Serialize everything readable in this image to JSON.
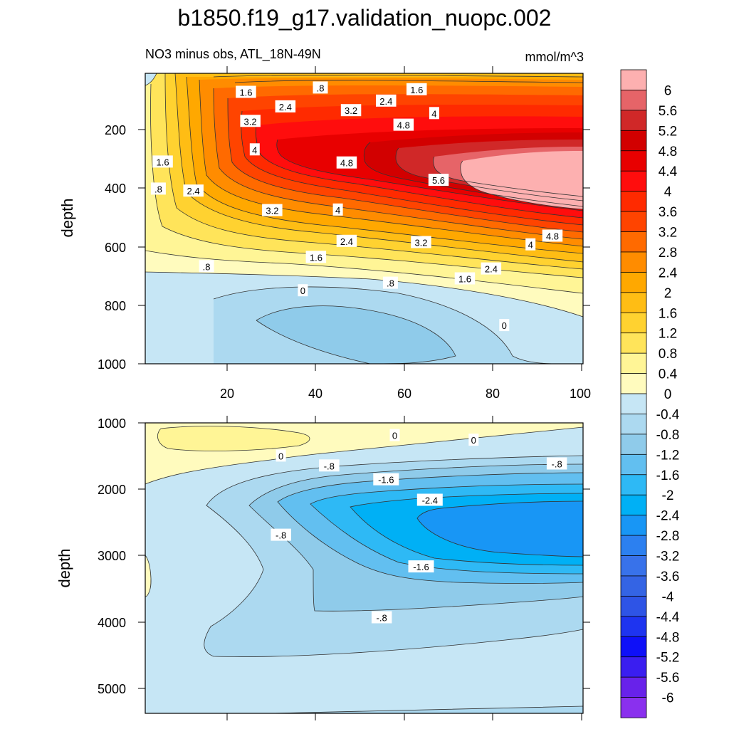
{
  "chart_data": {
    "type": "contour",
    "title": "b1850.f19_g17.validation_nuopc.002",
    "subtitle_left": "NO3 minus obs, ATL_18N-49N",
    "subtitle_right": "mmol/m^3",
    "colorbar": {
      "levels": [
        "6",
        "5.6",
        "5.2",
        "4.8",
        "4.4",
        "4",
        "3.6",
        "3.2",
        "2.8",
        "2.4",
        "2",
        "1.6",
        "1.2",
        "0.8",
        "0.4",
        "0",
        "-0.4",
        "-0.8",
        "-1.2",
        "-1.6",
        "-2",
        "-2.4",
        "-2.8",
        "-3.2",
        "-3.6",
        "-4",
        "-4.4",
        "-4.8",
        "-5.2",
        "-5.6",
        "-6"
      ],
      "colors": [
        "#fdb0b0",
        "#e66468",
        "#d02828",
        "#d20000",
        "#e80000",
        "#ff0d0d",
        "#ff2a00",
        "#ff4400",
        "#ff6a00",
        "#ff8c00",
        "#ffa800",
        "#ffbd14",
        "#ffd230",
        "#ffe45a",
        "#fff596",
        "#fffbbe",
        "#c6e6f5",
        "#acd9f0",
        "#8fcbea",
        "#62bff0",
        "#2eb9f5",
        "#00b0f5",
        "#1896f5",
        "#2c80f0",
        "#3872ea",
        "#3464e4",
        "#2e54e6",
        "#1e34f0",
        "#0e10f8",
        "#3a1ef0",
        "#6822ea",
        "#8a30ee"
      ]
    },
    "panels": [
      {
        "name": "upper",
        "xlim": [
          0,
          100
        ],
        "ylim": [
          0,
          1000
        ],
        "ylabel": "depth",
        "yticks": [
          "200",
          "400",
          "600",
          "800",
          "1000"
        ],
        "xticks": [
          "20",
          "40",
          "60",
          "80",
          "100"
        ],
        "contour_labels": [
          {
            "text": "1.6",
            "x": 23,
            "y": 65
          },
          {
            "text": ".8",
            "x": 40,
            "y": 50
          },
          {
            "text": "1.6",
            "x": 62,
            "y": 56
          },
          {
            "text": "2.4",
            "x": 32,
            "y": 115
          },
          {
            "text": "3.2",
            "x": 47,
            "y": 128
          },
          {
            "text": "2.4",
            "x": 55,
            "y": 95
          },
          {
            "text": "4",
            "x": 66,
            "y": 138
          },
          {
            "text": "3.2",
            "x": 24,
            "y": 165
          },
          {
            "text": "4.8",
            "x": 59,
            "y": 178
          },
          {
            "text": "4",
            "x": 25,
            "y": 263
          },
          {
            "text": "1.6",
            "x": 4,
            "y": 305
          },
          {
            "text": "4.8",
            "x": 46,
            "y": 308
          },
          {
            "text": "5.6",
            "x": 67,
            "y": 368
          },
          {
            "text": ".8",
            "x": 3,
            "y": 398
          },
          {
            "text": "2.4",
            "x": 11,
            "y": 405
          },
          {
            "text": "4",
            "x": 44,
            "y": 470
          },
          {
            "text": "3.2",
            "x": 29,
            "y": 472
          },
          {
            "text": "4.8",
            "x": 93,
            "y": 560
          },
          {
            "text": "2.4",
            "x": 46,
            "y": 578
          },
          {
            "text": "3.2",
            "x": 63,
            "y": 582
          },
          {
            "text": "4",
            "x": 88,
            "y": 590
          },
          {
            "text": "1.6",
            "x": 39,
            "y": 633
          },
          {
            "text": ".8",
            "x": 14,
            "y": 665
          },
          {
            "text": "2.4",
            "x": 79,
            "y": 673
          },
          {
            "text": "1.6",
            "x": 73,
            "y": 707
          },
          {
            "text": ".8",
            "x": 56,
            "y": 722
          },
          {
            "text": "0",
            "x": 36,
            "y": 748
          },
          {
            "text": "0",
            "x": 82,
            "y": 868
          }
        ]
      },
      {
        "name": "lower",
        "xlim": [
          0,
          100
        ],
        "ylim": [
          1000,
          5400
        ],
        "ylabel": "depth",
        "yticks": [
          "1000",
          "2000",
          "3000",
          "4000",
          "5000"
        ],
        "contour_labels": [
          {
            "text": "0",
            "x": 57,
            "y": 1190
          },
          {
            "text": "0",
            "x": 75,
            "y": 1260
          },
          {
            "text": "0",
            "x": 31,
            "y": 1500
          },
          {
            "text": "-.8",
            "x": 42,
            "y": 1650
          },
          {
            "text": "-.8",
            "x": 94,
            "y": 1620
          },
          {
            "text": "-1.6",
            "x": 55,
            "y": 1860
          },
          {
            "text": "-2.4",
            "x": 65,
            "y": 2170
          },
          {
            "text": "-.8",
            "x": 31,
            "y": 2700
          },
          {
            "text": "-1.6",
            "x": 63,
            "y": 3180
          },
          {
            "text": "-.8",
            "x": 54,
            "y": 3950
          }
        ]
      }
    ]
  }
}
